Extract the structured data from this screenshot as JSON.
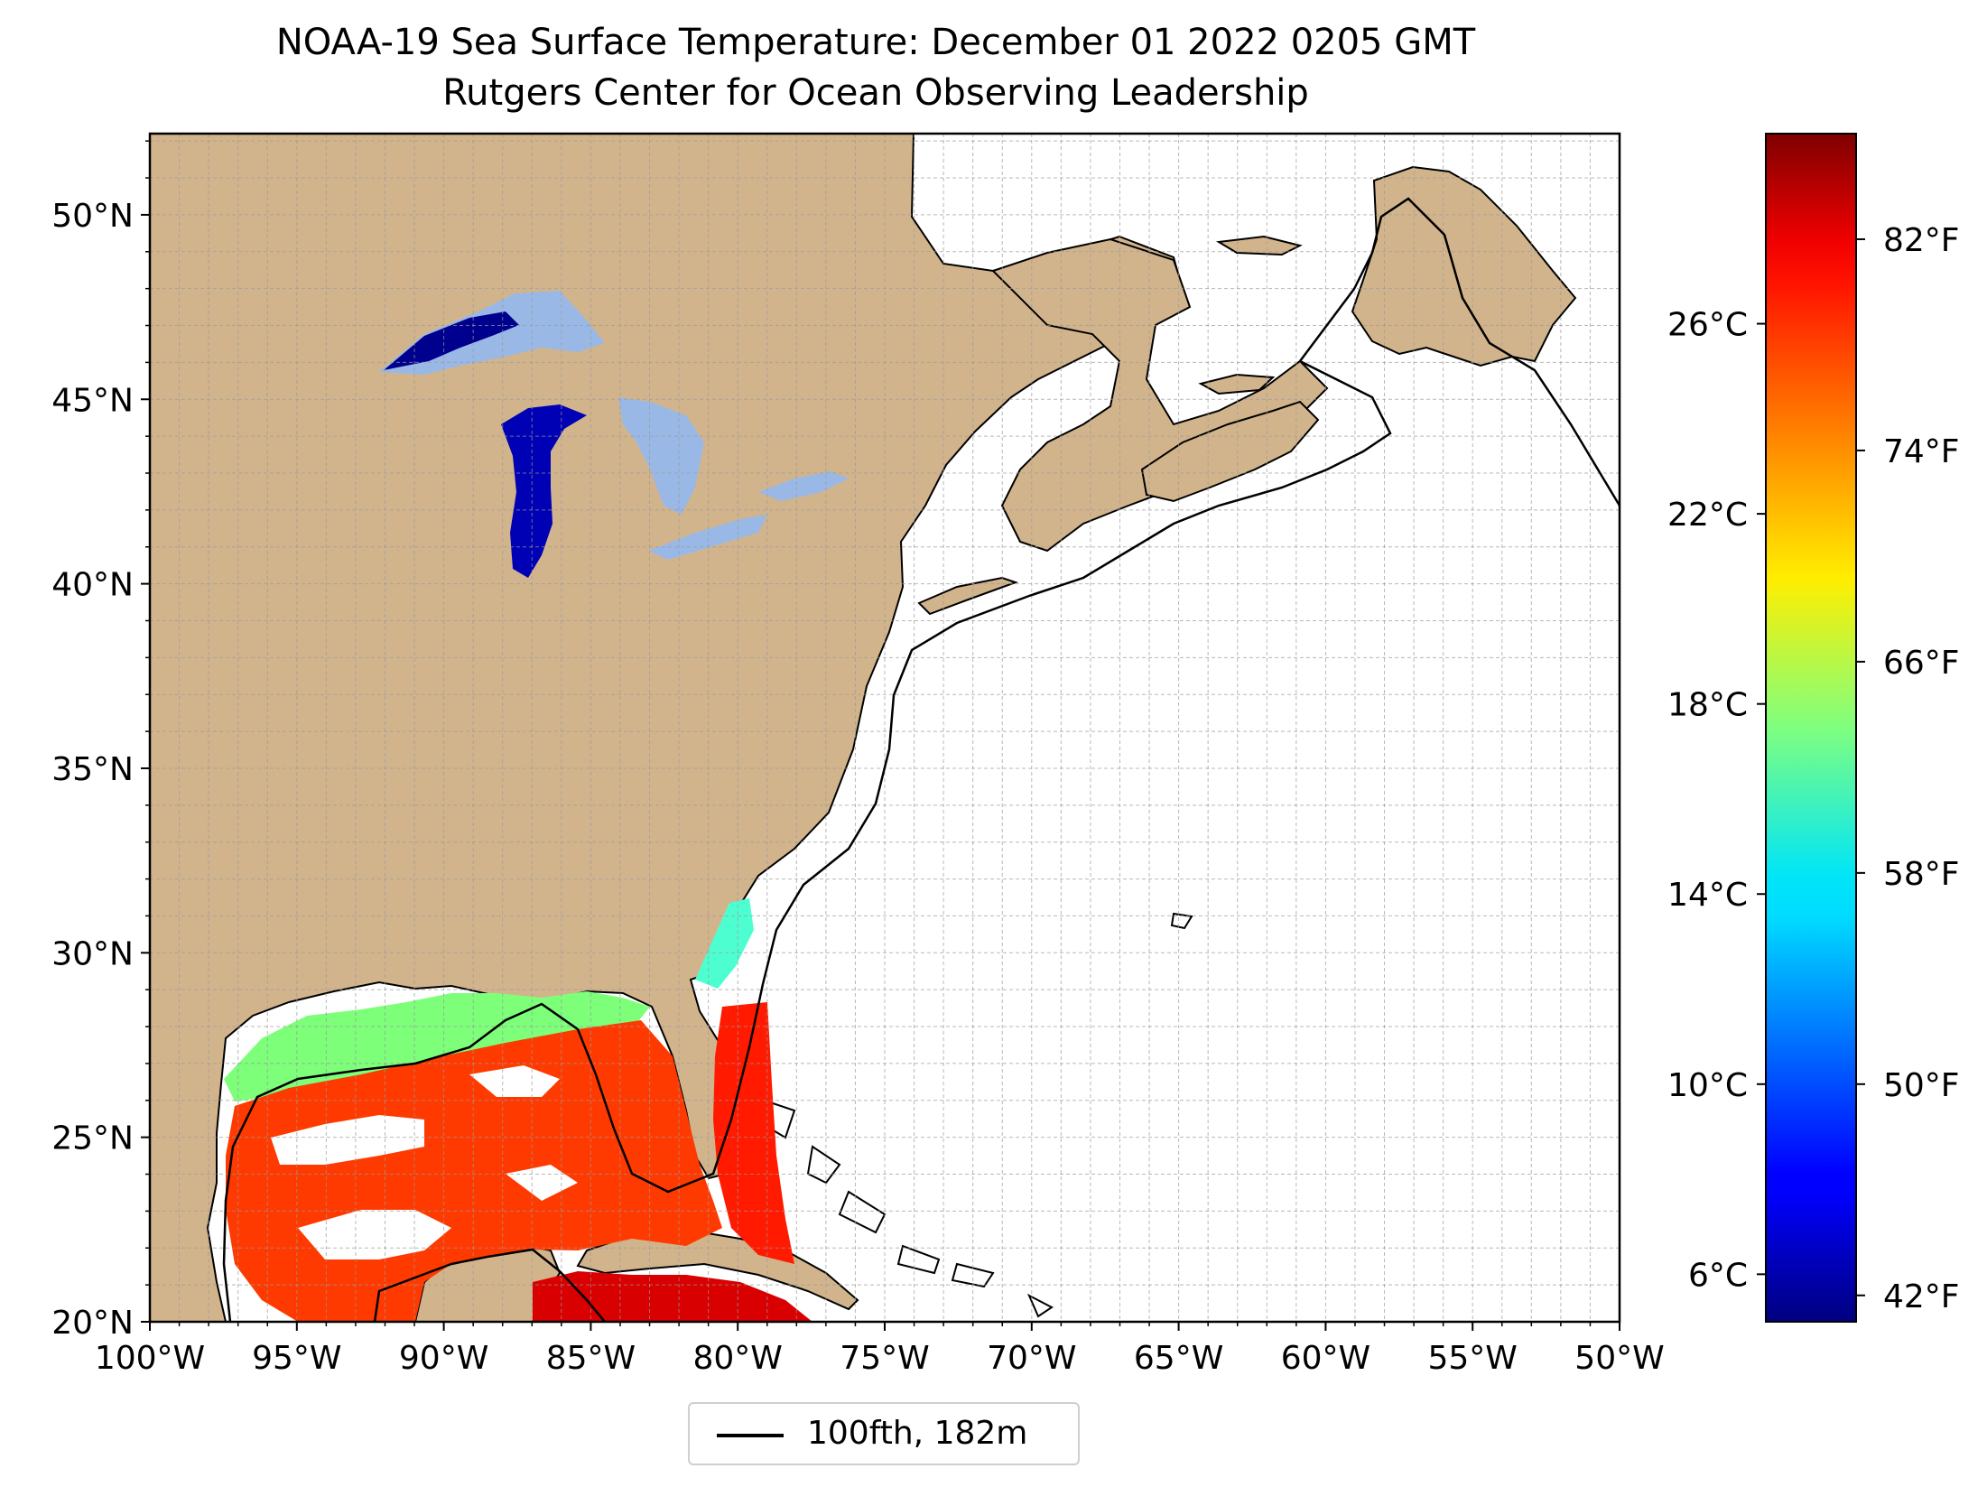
{
  "title": "NOAA-19 Sea Surface Temperature: December 01 2022 0205 GMT",
  "subtitle": "Rutgers Center for Ocean Observing Leadership",
  "map": {
    "projection": "Plate Carree",
    "lon_range": [
      -100,
      -50
    ],
    "lat_range": [
      20,
      52.2
    ],
    "lat_ticks": [
      "50°N",
      "45°N",
      "40°N",
      "35°N",
      "30°N",
      "25°N",
      "20°N"
    ],
    "lon_ticks": [
      "100°W",
      "95°W",
      "90°W",
      "85°W",
      "80°W",
      "75°W",
      "70°W",
      "65°W",
      "60°W",
      "55°W",
      "50°W"
    ],
    "gridlines": true,
    "land_color": "#d2b48c",
    "lake_color": "#9ab8e6",
    "ocean_nodata_color": "#ffffff",
    "data_coverage": "Gulf of Mexico, Caribbean, Florida Straits, Georgia coast, Great Lakes"
  },
  "colorbar": {
    "colormap": "jet",
    "celsius_range": [
      5,
      30
    ],
    "celsius_ticks": [
      "6°C",
      "10°C",
      "14°C",
      "18°C",
      "22°C",
      "26°C"
    ],
    "fahrenheit_ticks": [
      "42°F",
      "50°F",
      "58°F",
      "66°F",
      "74°F",
      "82°F"
    ]
  },
  "legend": {
    "placement": "bottom-center",
    "label": "100fth, 182m",
    "line_color": "#000000"
  }
}
